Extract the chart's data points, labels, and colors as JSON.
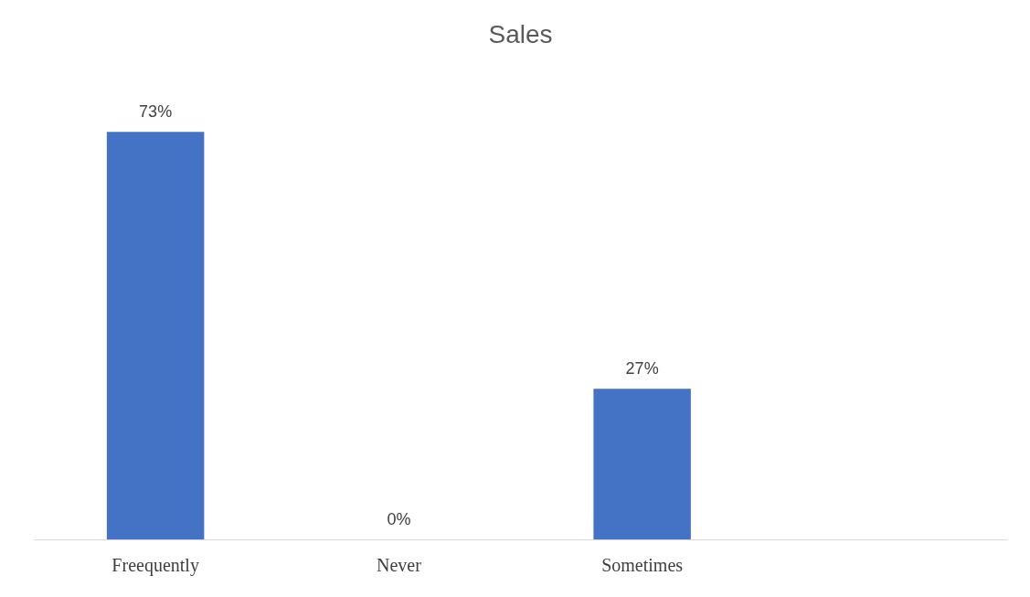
{
  "chart_data": {
    "type": "bar",
    "title": "Sales",
    "categories": [
      "Freequently",
      "Never",
      "Sometimes",
      null
    ],
    "values": [
      73,
      0,
      27,
      null
    ],
    "value_labels": [
      "73%",
      "0%",
      "27%",
      null
    ],
    "color": "#4472c4",
    "grid": false
  }
}
